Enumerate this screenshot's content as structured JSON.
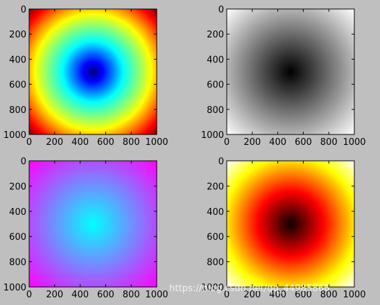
{
  "chart_data": [
    {
      "type": "heatmap",
      "colormap": "jet",
      "x": [
        0,
        200,
        400,
        600,
        800,
        1000
      ],
      "y": [
        0,
        200,
        400,
        600,
        800,
        1000
      ],
      "xlim": [
        0,
        1000
      ],
      "ylim": [
        1000,
        0
      ],
      "center": [
        500,
        500
      ],
      "field": "radial distance from center (minimum at center, maximum at corners)",
      "grid": false
    },
    {
      "type": "heatmap",
      "colormap": "gray",
      "x": [
        0,
        200,
        400,
        600,
        800,
        1000
      ],
      "y": [
        0,
        200,
        400,
        600,
        800,
        1000
      ],
      "xlim": [
        0,
        1000
      ],
      "ylim": [
        1000,
        0
      ],
      "center": [
        500,
        500
      ],
      "field": "radial distance from center (minimum at center, maximum at corners)",
      "grid": false
    },
    {
      "type": "heatmap",
      "colormap": "cool",
      "x": [
        0,
        200,
        400,
        600,
        800,
        1000
      ],
      "y": [
        0,
        200,
        400,
        600,
        800,
        1000
      ],
      "xlim": [
        0,
        1000
      ],
      "ylim": [
        1000,
        0
      ],
      "center": [
        500,
        500
      ],
      "field": "radial distance from center (minimum at center, maximum at corners)",
      "grid": false
    },
    {
      "type": "heatmap",
      "colormap": "hot",
      "x": [
        0,
        200,
        400,
        600,
        800,
        1000
      ],
      "y": [
        0,
        200,
        400,
        600,
        800,
        1000
      ],
      "xlim": [
        0,
        1000
      ],
      "ylim": [
        1000,
        0
      ],
      "center": [
        500,
        500
      ],
      "field": "radial distance from center (minimum at center, maximum at corners)",
      "grid": false
    }
  ],
  "colors": {
    "figure_background": "#bfbfbf",
    "axes_frame": "#000000",
    "watermark": "#ffffff"
  },
  "watermark": "https://blog.csdn.net/qq_44985866"
}
